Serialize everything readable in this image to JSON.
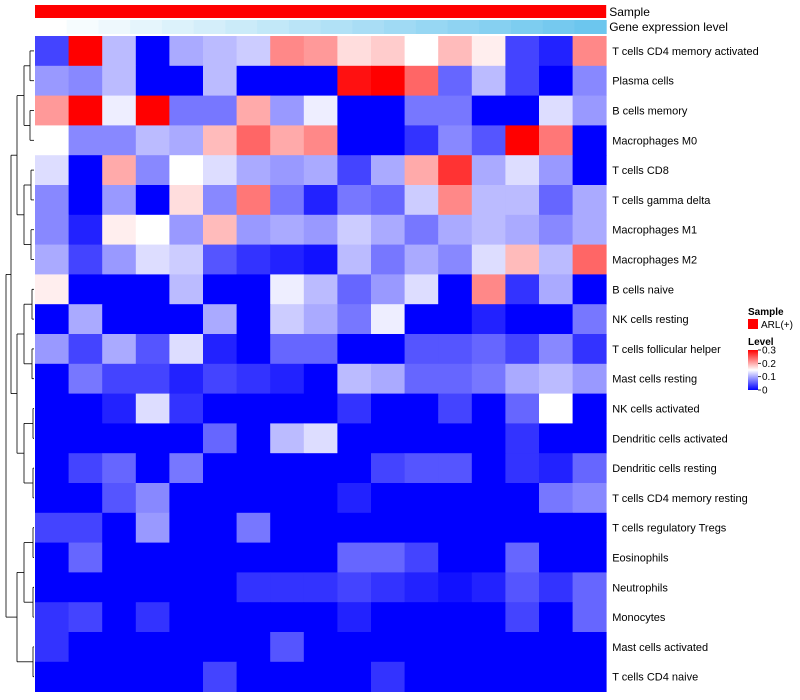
{
  "chart_data": {
    "type": "heatmap",
    "annotations": [
      {
        "label": "Sample",
        "color": "#ff0000"
      },
      {
        "label": "Gene expression level",
        "color_low": "#ffffff",
        "color_high": "#6cc6ee",
        "values": [
          0.0,
          0.05,
          0.1,
          0.15,
          0.2,
          0.25,
          0.3,
          0.35,
          0.4,
          0.45,
          0.5,
          0.55,
          0.6,
          0.65,
          0.7,
          0.75,
          0.8,
          0.85
        ]
      }
    ],
    "rows": [
      "T cells CD4 memory activated",
      "Plasma cells",
      "B cells memory",
      "Macrophages M0",
      "T cells CD8",
      "T cells gamma delta",
      "Macrophages M1",
      "Macrophages M2",
      "B cells naive",
      "NK cells resting",
      "T cells follicular helper",
      "Mast cells resting",
      "NK cells activated",
      "Dendritic cells activated",
      "Dendritic cells resting",
      "T cells CD4 memory resting",
      "T cells regulatory  Tregs",
      "Eosinophils",
      "Neutrophils",
      "Monocytes",
      "Mast cells activated",
      "T cells CD4 naive"
    ],
    "values": [
      [
        0.04,
        0.3,
        0.11,
        0.0,
        0.1,
        0.11,
        0.12,
        0.22,
        0.21,
        0.17,
        0.18,
        0.15,
        0.19,
        0.16,
        0.04,
        0.02,
        0.22
      ],
      [
        0.09,
        0.08,
        0.11,
        0.0,
        0.0,
        0.11,
        0.0,
        0.0,
        0.0,
        0.29,
        0.3,
        0.24,
        0.06,
        0.11,
        0.04,
        0.0,
        0.08
      ],
      [
        0.21,
        0.3,
        0.14,
        0.3,
        0.07,
        0.07,
        0.2,
        0.09,
        0.14,
        0.0,
        0.0,
        0.07,
        0.07,
        0.0,
        0.0,
        0.13,
        0.09
      ],
      [
        0.15,
        0.08,
        0.08,
        0.11,
        0.1,
        0.19,
        0.24,
        0.2,
        0.22,
        0.0,
        0.0,
        0.03,
        0.08,
        0.05,
        0.3,
        0.23,
        0.0
      ],
      [
        0.13,
        0.0,
        0.2,
        0.08,
        0.15,
        0.13,
        0.1,
        0.09,
        0.1,
        0.04,
        0.1,
        0.2,
        0.27,
        0.1,
        0.13,
        0.09,
        0.0
      ],
      [
        0.08,
        0.0,
        0.09,
        0.0,
        0.17,
        0.08,
        0.23,
        0.07,
        0.02,
        0.07,
        0.06,
        0.12,
        0.22,
        0.11,
        0.11,
        0.06,
        0.1
      ],
      [
        0.08,
        0.02,
        0.16,
        0.15,
        0.09,
        0.19,
        0.09,
        0.1,
        0.09,
        0.12,
        0.1,
        0.07,
        0.1,
        0.11,
        0.1,
        0.08,
        0.1
      ],
      [
        0.1,
        0.04,
        0.09,
        0.13,
        0.12,
        0.05,
        0.03,
        0.02,
        0.01,
        0.11,
        0.07,
        0.1,
        0.08,
        0.13,
        0.19,
        0.11,
        0.24
      ],
      [
        0.16,
        0.0,
        0.0,
        0.0,
        0.11,
        0.0,
        0.0,
        0.14,
        0.11,
        0.06,
        0.09,
        0.13,
        0.0,
        0.22,
        0.03,
        0.1,
        0.0
      ],
      [
        0.0,
        0.1,
        0.0,
        0.0,
        0.0,
        0.1,
        0.0,
        0.12,
        0.1,
        0.07,
        0.14,
        0.0,
        0.0,
        0.02,
        0.0,
        0.0,
        0.07
      ],
      [
        0.09,
        0.04,
        0.1,
        0.05,
        0.13,
        0.02,
        0.0,
        0.06,
        0.06,
        0.0,
        0.0,
        0.05,
        0.05,
        0.06,
        0.04,
        0.08,
        0.03
      ],
      [
        0.0,
        0.07,
        0.04,
        0.04,
        0.02,
        0.04,
        0.03,
        0.02,
        0.0,
        0.11,
        0.1,
        0.06,
        0.06,
        0.07,
        0.1,
        0.11,
        0.09
      ],
      [
        0.0,
        0.0,
        0.02,
        0.13,
        0.03,
        0.0,
        0.0,
        0.0,
        0.0,
        0.03,
        0.0,
        0.0,
        0.04,
        0.0,
        0.06,
        0.15,
        0.0
      ],
      [
        0.0,
        0.0,
        0.0,
        0.0,
        0.0,
        0.06,
        0.0,
        0.11,
        0.13,
        0.0,
        0.0,
        0.0,
        0.0,
        0.0,
        0.03,
        0.0,
        0.0
      ],
      [
        0.0,
        0.04,
        0.06,
        0.0,
        0.07,
        0.0,
        0.0,
        0.0,
        0.0,
        0.0,
        0.04,
        0.05,
        0.05,
        0.0,
        0.03,
        0.02,
        0.06
      ],
      [
        0.0,
        0.0,
        0.05,
        0.08,
        0.0,
        0.0,
        0.0,
        0.0,
        0.0,
        0.02,
        0.0,
        0.0,
        0.0,
        0.0,
        0.0,
        0.07,
        0.08
      ],
      [
        0.04,
        0.04,
        0.0,
        0.09,
        0.0,
        0.0,
        0.07,
        0.0,
        0.0,
        0.0,
        0.0,
        0.0,
        0.0,
        0.0,
        0.0,
        0.0,
        0.0
      ],
      [
        0.0,
        0.06,
        0.0,
        0.0,
        0.0,
        0.0,
        0.0,
        0.0,
        0.0,
        0.06,
        0.06,
        0.04,
        0.0,
        0.0,
        0.06,
        0.0,
        0.0
      ],
      [
        0.0,
        0.0,
        0.0,
        0.0,
        0.0,
        0.0,
        0.03,
        0.03,
        0.03,
        0.04,
        0.03,
        0.02,
        0.01,
        0.02,
        0.05,
        0.03,
        0.06
      ],
      [
        0.03,
        0.04,
        0.0,
        0.03,
        0.0,
        0.0,
        0.0,
        0.0,
        0.0,
        0.02,
        0.0,
        0.0,
        0.0,
        0.0,
        0.04,
        0.0,
        0.06
      ],
      [
        0.03,
        0.0,
        0.0,
        0.0,
        0.0,
        0.0,
        0.0,
        0.05,
        0.0,
        0.0,
        0.0,
        0.0,
        0.0,
        0.0,
        0.0,
        0.0,
        0.0
      ],
      [
        0.0,
        0.0,
        0.0,
        0.0,
        0.0,
        0.04,
        0.0,
        0.0,
        0.0,
        0.0,
        0.03,
        0.0,
        0.0,
        0.0,
        0.0,
        0.0,
        0.0
      ]
    ],
    "color_scale": {
      "low": "#0000ff",
      "mid": "#ffffff",
      "high": "#ff0000",
      "min": 0,
      "mid_value": 0.15,
      "max": 0.3
    },
    "legend": {
      "sample_title": "Sample",
      "sample_label": "ARL(+)",
      "sample_color": "#ff0000",
      "level_title": "Level",
      "ticks": [
        "0.3",
        "0.2",
        "0.1",
        "0"
      ],
      "tick_values": [
        0.3,
        0.2,
        0.1,
        0
      ],
      "placement": "right-middle"
    },
    "dendrogram": "rows-left"
  }
}
